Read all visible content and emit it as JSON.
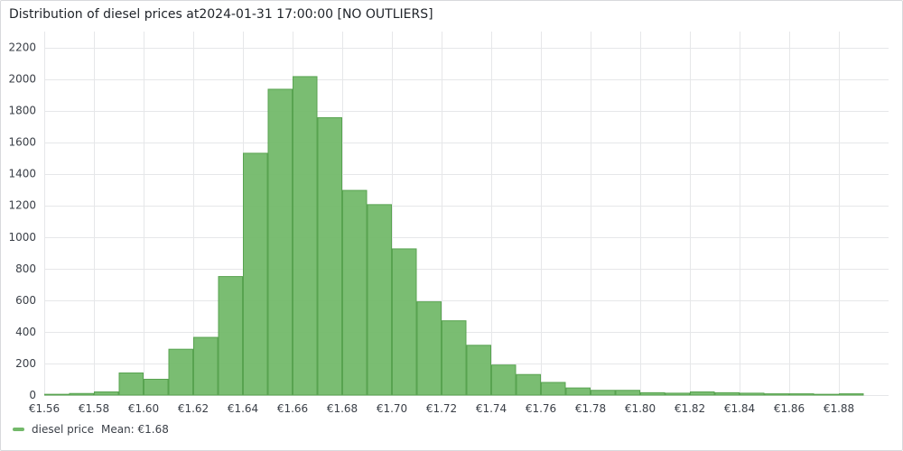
{
  "panel": {
    "title": "Distribution of diesel prices at2024-01-31 17:00:00 [NO OUTLIERS]"
  },
  "colors": {
    "bar_fill": "#73b96a",
    "bar_stroke": "#58a350",
    "grid": "#e6e7e9",
    "axis_text": "#3a3f47"
  },
  "legend": {
    "series_label": "diesel price",
    "stat_label": "Mean: €1.68"
  },
  "chart_data": {
    "type": "histogram",
    "series": [
      {
        "name": "diesel price",
        "bin_start": 1.56,
        "bin_width": 0.01,
        "values": [
          5,
          10,
          20,
          140,
          100,
          290,
          365,
          750,
          1530,
          1935,
          2015,
          1755,
          1295,
          1205,
          925,
          590,
          470,
          315,
          190,
          130,
          80,
          45,
          30,
          30,
          15,
          12,
          20,
          15,
          12,
          8,
          8,
          5,
          8
        ]
      }
    ],
    "xlim": [
      1.56,
      1.9
    ],
    "ylim": [
      0,
      2300
    ],
    "y_ticks": [
      0,
      200,
      400,
      600,
      800,
      1000,
      1200,
      1400,
      1600,
      1800,
      2000,
      2200
    ],
    "x_ticks": [
      1.56,
      1.58,
      1.6,
      1.62,
      1.64,
      1.66,
      1.68,
      1.7,
      1.72,
      1.74,
      1.76,
      1.78,
      1.8,
      1.82,
      1.84,
      1.86,
      1.88
    ],
    "x_tick_labels": [
      "€1.56",
      "€1.58",
      "€1.60",
      "€1.62",
      "€1.64",
      "€1.66",
      "€1.68",
      "€1.70",
      "€1.72",
      "€1.74",
      "€1.76",
      "€1.78",
      "€1.80",
      "€1.82",
      "€1.84",
      "€1.86",
      "€1.88"
    ],
    "y_tick_labels": [
      "0",
      "200",
      "400",
      "600",
      "800",
      "1000",
      "1200",
      "1400",
      "1600",
      "1800",
      "2000",
      "2200"
    ],
    "grid": true,
    "legend_position": "bottom-left"
  }
}
